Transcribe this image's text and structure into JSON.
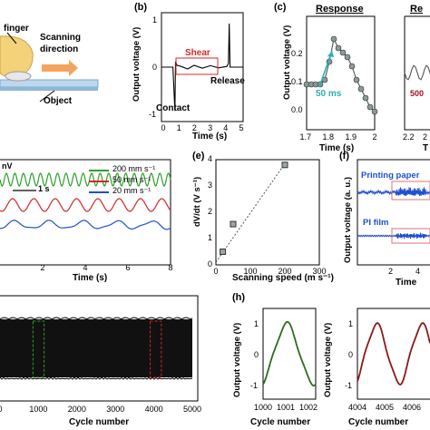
{
  "panels": {
    "a": {
      "labels": [
        "finger",
        "Scanning",
        "direction",
        "Object"
      ],
      "colors": {
        "finger": "#f3d27a",
        "object": "#bcd7ee",
        "arrow": "#f4a460"
      }
    },
    "b": {
      "letter": "(b)",
      "ylabel": "Output voltage (V)",
      "xlabel": "Time (s)",
      "yticks": [
        "1",
        "0",
        "-1"
      ],
      "xticks": [
        "0",
        "1",
        "2",
        "3",
        "4",
        "5"
      ],
      "annotations": {
        "shear": "Shear",
        "release": "Release",
        "contact": "Contact"
      },
      "colors": {
        "shear": "#d62728"
      }
    },
    "c": {
      "letter": "(c)",
      "title": "Response",
      "title2": "Re",
      "ylabel": "Output voltage (V)",
      "xlabel": "Time (s)",
      "xlabel2": "T",
      "yticks": [
        "0.2",
        "0.1",
        "0.0"
      ],
      "xticks": [
        "1.7",
        "1.8",
        "1.9",
        "2"
      ],
      "xticks2": [
        "2.2",
        "2"
      ],
      "annotation": "50 ms",
      "annotation2": "500",
      "colors": {
        "annotation": "#2ab0b0",
        "annotation2": "#a01030"
      }
    },
    "d": {
      "scale": "nV",
      "timebar": "1 s",
      "xlabel": "Time (s)",
      "xticks": [
        "2",
        "4",
        "6",
        "8"
      ],
      "legend": [
        {
          "label": "200  mm s⁻¹",
          "color": "#2ca02c"
        },
        {
          "label": "50    mm s⁻¹",
          "color": "#d62728"
        },
        {
          "label": "20    mm s⁻¹",
          "color": "#1f4fd1"
        }
      ]
    },
    "e": {
      "letter": "(e)",
      "ylabel": "dV/dt (V s⁻¹)",
      "xlabel": "Scanning speed (m s⁻¹)",
      "yticks": [
        "4",
        "3",
        "2",
        "1",
        "0"
      ],
      "xticks": [
        "0",
        "100",
        "200",
        "300"
      ]
    },
    "f": {
      "letter": "(f)",
      "ylabel": "Output voltage (a. u.)",
      "xlabel": "Time",
      "xticks": [
        "2",
        "4"
      ],
      "labels": [
        "Printing paper",
        "PI film"
      ],
      "colors": {
        "line": "#1f4fd1",
        "box": "#e07070"
      }
    },
    "g": {
      "xlabel": "Cycle number",
      "xticks": [
        "0",
        "1000",
        "2000",
        "3000",
        "4000",
        "5000"
      ],
      "colors": {
        "green_box": "#2ca02c",
        "red_box": "#d62728"
      }
    },
    "h": {
      "letter": "(h)",
      "ylabel": "Output voltage (V)",
      "xlabel": "Cycle number",
      "xlabel2": "Cycle number",
      "yticks": [
        "1",
        "0",
        "-1"
      ],
      "xticks": [
        "1000",
        "1001",
        "1002"
      ],
      "xticks2": [
        "4004",
        "4005",
        "4006"
      ],
      "colors": {
        "green": "#2f6b1f",
        "red": "#8b1a1a"
      }
    }
  },
  "chart_data": [
    {
      "type": "line",
      "panel": "b",
      "xlabel": "Time (s)",
      "ylabel": "Output voltage (V)",
      "xlim": [
        0,
        5
      ],
      "ylim": [
        -1.5,
        1.5
      ],
      "x": [
        0,
        0.7,
        0.82,
        0.86,
        0.95,
        1.2,
        1.6,
        2.0,
        2.5,
        3.0,
        3.5,
        4.0,
        4.1,
        4.15,
        4.2,
        4.5,
        5.0
      ],
      "values": [
        0,
        0,
        -1.2,
        0.15,
        0.05,
        0.02,
        -0.05,
        0.05,
        -0.03,
        0.04,
        -0.02,
        0.02,
        0.1,
        1.2,
        0.0,
        0.0,
        0.0
      ]
    },
    {
      "type": "line",
      "panel": "c",
      "xlabel": "Time (s)",
      "ylabel": "Output voltage (V)",
      "xlim": [
        1.7,
        2.0
      ],
      "ylim": [
        0.0,
        0.25
      ],
      "x": [
        1.7,
        1.72,
        1.74,
        1.76,
        1.78,
        1.8,
        1.82,
        1.84,
        1.86,
        1.88,
        1.9,
        1.92,
        1.94,
        1.96,
        1.98,
        2.0
      ],
      "values": [
        0.1,
        0.1,
        0.1,
        0.1,
        0.11,
        0.15,
        0.2,
        0.18,
        0.17,
        0.16,
        0.14,
        0.11,
        0.09,
        0.07,
        0.05,
        0.04
      ]
    },
    {
      "type": "line",
      "panel": "d",
      "xlabel": "Time (s)",
      "xlim": [
        0,
        8
      ],
      "series": [
        {
          "name": "200  mm s⁻¹",
          "cycles": 20,
          "amplitude": 1.0
        },
        {
          "name": "50    mm s⁻¹",
          "cycles": 8,
          "amplitude": 1.0
        },
        {
          "name": "20    mm s⁻¹",
          "cycles": 5,
          "amplitude": 0.8
        }
      ]
    },
    {
      "type": "scatter",
      "panel": "e",
      "xlabel": "Scanning speed (m s⁻¹)",
      "ylabel": "dV/dt (V s⁻¹)",
      "xlim": [
        0,
        300
      ],
      "ylim": [
        0,
        4
      ],
      "x": [
        20,
        50,
        200
      ],
      "values": [
        0.5,
        1.55,
        3.8
      ],
      "fit": [
        [
          0,
          0.1
        ],
        [
          200,
          3.85
        ]
      ]
    },
    {
      "type": "line",
      "panel": "g",
      "xlabel": "Cycle number",
      "xlim": [
        0,
        5000
      ],
      "highlight_green": [
        1000,
        1100
      ],
      "highlight_red": [
        4000,
        4100
      ]
    },
    {
      "type": "line",
      "panel": "h",
      "xlabel": "Cycle number",
      "ylabel": "Output voltage (V)",
      "xlim": [
        1000,
        1002
      ],
      "ylim": [
        -1.2,
        1.2
      ]
    }
  ]
}
